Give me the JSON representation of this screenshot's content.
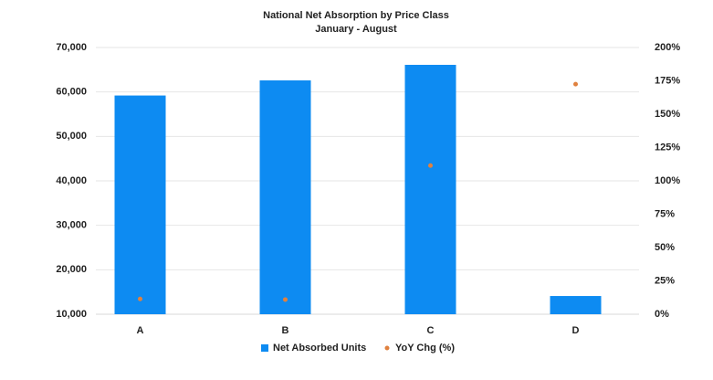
{
  "chart_data": {
    "type": "bar",
    "title": "National Net Absorption by Price Class",
    "subtitle": "January - August",
    "categories": [
      "A",
      "B",
      "C",
      "D"
    ],
    "series": [
      {
        "name": "Net Absorbed Units",
        "color": "#0d8bf2",
        "values": [
          59200,
          62600,
          66100,
          14100
        ]
      },
      {
        "name": "YoY Chg (%)",
        "color": "#e0813f",
        "type": "scatter",
        "axis": "y2",
        "values": [
          11.5,
          11,
          111.5,
          172.5
        ]
      }
    ],
    "ylim": [
      10000,
      70000
    ],
    "yticks": [
      {
        "value": 10000,
        "label": "10,000"
      },
      {
        "value": 20000,
        "label": "20,000"
      },
      {
        "value": 30000,
        "label": "30,000"
      },
      {
        "value": 40000,
        "label": "40,000"
      },
      {
        "value": 50000,
        "label": "50,000"
      },
      {
        "value": 60000,
        "label": "60,000"
      },
      {
        "value": 70000,
        "label": "70,000"
      }
    ],
    "y2lim": [
      0,
      200
    ],
    "y2ticks": [
      {
        "value": 0,
        "label": "0%"
      },
      {
        "value": 25,
        "label": "25%"
      },
      {
        "value": 50,
        "label": "50%"
      },
      {
        "value": 75,
        "label": "75%"
      },
      {
        "value": 100,
        "label": "100%"
      },
      {
        "value": 125,
        "label": "125%"
      },
      {
        "value": 150,
        "label": "150%"
      },
      {
        "value": 175,
        "label": "175%"
      },
      {
        "value": 200,
        "label": "200%"
      }
    ],
    "grid": true,
    "legend": "bottom"
  }
}
